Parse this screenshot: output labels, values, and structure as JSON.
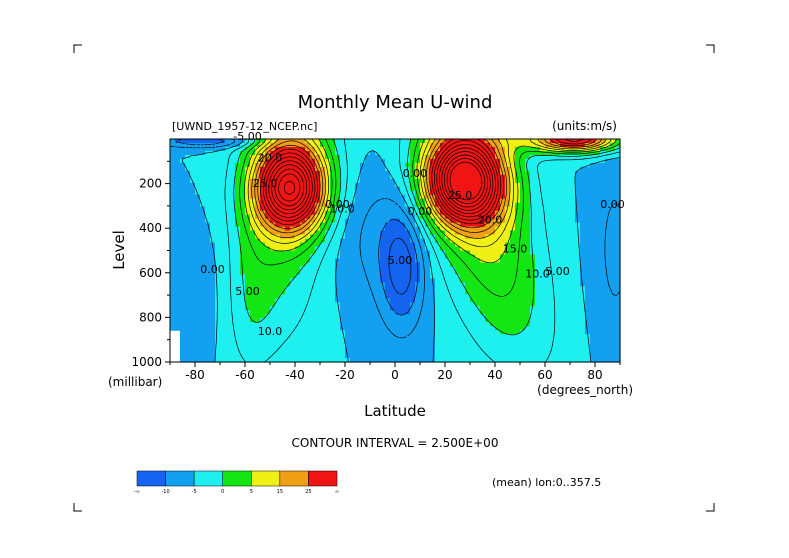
{
  "chart_data": {
    "type": "contour",
    "title": "Monthly Mean U-wind",
    "dataset_label": "[UWND_1957-12_NCEP.nc]",
    "units_label": "(units:m/s)",
    "xlabel": "Latitude",
    "x_units": "(degrees_north)",
    "ylabel": "Level",
    "y_units": "(millibar)",
    "xlim": [
      -90,
      90
    ],
    "ylim": [
      1000,
      0
    ],
    "x_ticks": [
      -80,
      -60,
      -40,
      -20,
      0,
      20,
      40,
      60,
      80
    ],
    "y_ticks": [
      200,
      400,
      600,
      800,
      1000
    ],
    "contour_interval_text": "CONTOUR INTERVAL = 2.500E+00",
    "mean_text": "(mean) lon:0..357.5",
    "levels": [
      -10,
      -5,
      0,
      5,
      10,
      15,
      20,
      25
    ],
    "fill_colors": [
      "#1464f0",
      "#14a0f0",
      "#1ef0f0",
      "#14e614",
      "#f0f014",
      "#f0a014",
      "#f01414"
    ],
    "colorbar_labels": [
      "-∞",
      "-10",
      "-5",
      "0",
      "5",
      "15",
      "25",
      "∞"
    ],
    "contour_labels": [
      {
        "text": "-5.00",
        "lat": -59,
        "lev": 5
      },
      {
        "text": "20.0",
        "lat": -50,
        "lev": 100
      },
      {
        "text": "25.0",
        "lat": -52,
        "lev": 215
      },
      {
        "text": "10.0",
        "lat": -21,
        "lev": 330
      },
      {
        "text": "0.00",
        "lat": -23,
        "lev": 310
      },
      {
        "text": "0.00",
        "lat": -73,
        "lev": 600
      },
      {
        "text": "5.00",
        "lat": -59,
        "lev": 700
      },
      {
        "text": "10.0",
        "lat": -50,
        "lev": 880
      },
      {
        "text": "5.00",
        "lat": 2,
        "lev": 560
      },
      {
        "text": "0.00",
        "lat": 8,
        "lev": 170
      },
      {
        "text": "0.00",
        "lat": 10,
        "lev": 340
      },
      {
        "text": "25.0",
        "lat": 26,
        "lev": 270
      },
      {
        "text": "20.0",
        "lat": 38,
        "lev": 380
      },
      {
        "text": "15.0",
        "lat": 48,
        "lev": 510
      },
      {
        "text": "10.0",
        "lat": 57,
        "lev": 620
      },
      {
        "text": "5.00",
        "lat": 65,
        "lev": 610
      },
      {
        "text": "0.00",
        "lat": 87,
        "lev": 310
      }
    ],
    "grid": false
  }
}
